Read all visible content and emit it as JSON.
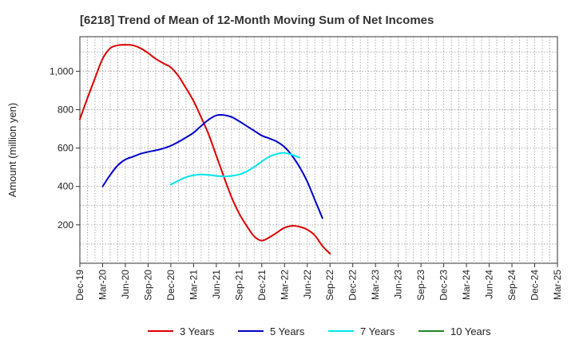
{
  "chart_data": {
    "type": "line",
    "title": "[6218]  Trend of Mean of 12-Month Moving Sum of Net Incomes",
    "xlabel": "",
    "ylabel": "Amount (million yen)",
    "x_ticks": [
      "Dec-19",
      "Mar-20",
      "Jun-20",
      "Sep-20",
      "Dec-20",
      "Mar-21",
      "Jun-21",
      "Sep-21",
      "Dec-21",
      "Mar-22",
      "Jun-22",
      "Sep-22",
      "Dec-22",
      "Mar-23",
      "Jun-23",
      "Sep-23",
      "Dec-23",
      "Mar-24",
      "Jun-24",
      "Sep-24",
      "Dec-24",
      "Mar-25"
    ],
    "y_ticks": [
      200,
      400,
      600,
      800,
      1000
    ],
    "y_tick_labels": [
      "200",
      "400",
      "600",
      "800",
      "1,000"
    ],
    "ylim": [
      0,
      1180
    ],
    "grid": true,
    "legend_position": "bottom",
    "series": [
      {
        "name": "3 Years",
        "color": "#dd0000",
        "start_index": 0,
        "values": [
          750,
          860,
          965,
          1065,
          1120,
          1135,
          1138,
          1135,
          1120,
          1095,
          1065,
          1042,
          1020,
          975,
          912,
          845,
          760,
          670,
          560,
          450,
          345,
          260,
          195,
          140,
          118,
          135,
          160,
          185,
          195,
          190,
          175,
          145,
          90,
          50
        ]
      },
      {
        "name": "5 Years",
        "color": "#0000cc",
        "start_index": 3,
        "values": [
          400,
          460,
          510,
          540,
          555,
          570,
          580,
          588,
          598,
          612,
          632,
          655,
          680,
          715,
          748,
          770,
          772,
          762,
          740,
          715,
          690,
          665,
          650,
          633,
          605,
          560,
          500,
          425,
          330,
          235
        ]
      },
      {
        "name": "7 Years",
        "color": "#00e5ee",
        "start_index": 12,
        "values": [
          410,
          430,
          448,
          458,
          462,
          460,
          455,
          452,
          455,
          462,
          478,
          502,
          530,
          555,
          570,
          575,
          565,
          550
        ]
      },
      {
        "name": "10 Years",
        "color": "#228822",
        "start_index": 0,
        "values": []
      }
    ]
  }
}
